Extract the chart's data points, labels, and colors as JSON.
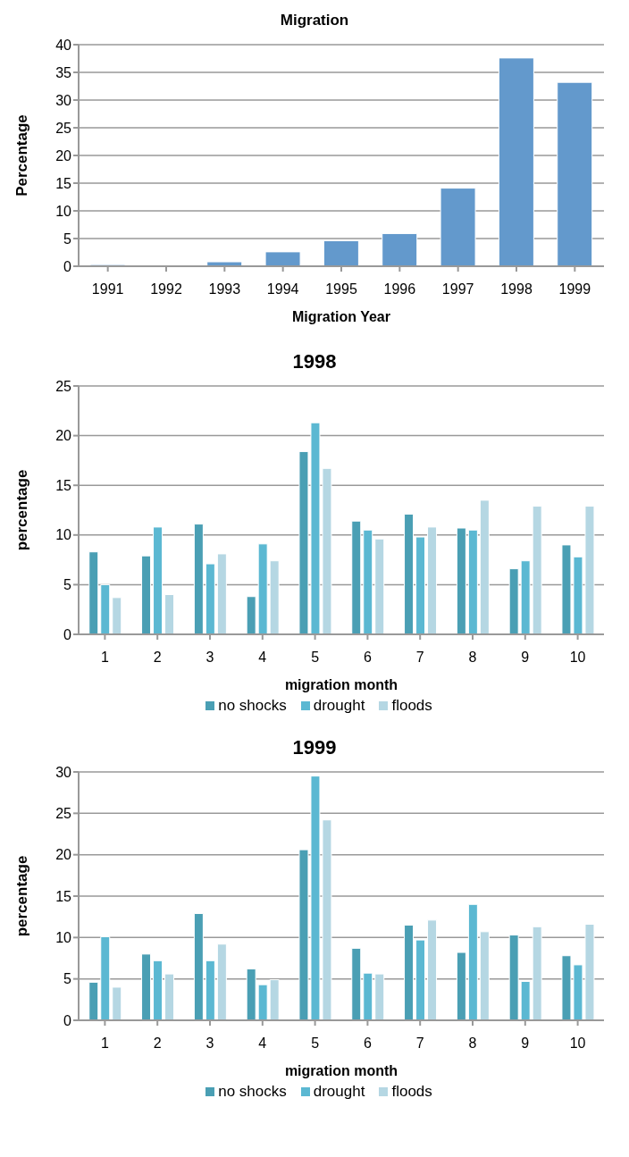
{
  "chart_data": [
    {
      "type": "bar",
      "title": "Migration",
      "xlabel": "Migration Year",
      "ylabel": "Percentage",
      "categories": [
        "1991",
        "1992",
        "1993",
        "1994",
        "1995",
        "1996",
        "1997",
        "1998",
        "1999"
      ],
      "values": [
        0.3,
        0,
        0.8,
        2.6,
        4.6,
        5.9,
        14.1,
        37.6,
        33.2
      ],
      "color": "#6399cc",
      "ylim": [
        0,
        40
      ],
      "yticks": [
        0,
        5,
        10,
        15,
        20,
        25,
        30,
        35,
        40
      ],
      "grid": "y",
      "legend": false
    },
    {
      "type": "bar",
      "title": "1998",
      "xlabel": "migration month",
      "ylabel": "percentage",
      "categories": [
        "1",
        "2",
        "3",
        "4",
        "5",
        "6",
        "7",
        "8",
        "9",
        "10"
      ],
      "series": [
        {
          "name": "no shocks",
          "color": "#4a9fb4",
          "values": [
            8.3,
            7.9,
            11.1,
            3.8,
            18.4,
            11.4,
            12.1,
            10.7,
            6.6,
            9.0
          ]
        },
        {
          "name": "drought",
          "color": "#5bb8d2",
          "values": [
            5.0,
            10.8,
            7.1,
            9.1,
            21.3,
            10.5,
            9.8,
            10.5,
            7.4,
            7.8
          ]
        },
        {
          "name": "floods",
          "color": "#b5d7e3",
          "values": [
            3.7,
            4.0,
            8.1,
            7.4,
            16.7,
            9.6,
            10.8,
            13.5,
            12.9,
            12.9
          ]
        }
      ],
      "ylim": [
        0,
        25
      ],
      "yticks": [
        0,
        5,
        10,
        15,
        20,
        25
      ],
      "grid": "y",
      "legend": "bottom"
    },
    {
      "type": "bar",
      "title": "1999",
      "xlabel": "migration month",
      "ylabel": "percentage",
      "categories": [
        "1",
        "2",
        "3",
        "4",
        "5",
        "6",
        "7",
        "8",
        "9",
        "10"
      ],
      "series": [
        {
          "name": "no shocks",
          "color": "#4a9fb4",
          "values": [
            4.6,
            8.0,
            12.9,
            6.2,
            20.6,
            8.7,
            11.5,
            8.2,
            10.3,
            7.8
          ]
        },
        {
          "name": "drought",
          "color": "#5bb8d2",
          "values": [
            10.1,
            7.2,
            7.2,
            4.3,
            29.5,
            5.7,
            9.7,
            14.0,
            4.7,
            6.7
          ]
        },
        {
          "name": "floods",
          "color": "#b5d7e3",
          "values": [
            4.0,
            5.6,
            9.2,
            4.9,
            24.2,
            5.6,
            12.1,
            10.7,
            11.3,
            11.6
          ]
        }
      ],
      "ylim": [
        0,
        30
      ],
      "yticks": [
        0,
        5,
        10,
        15,
        20,
        25,
        30
      ],
      "grid": "y",
      "legend": "bottom"
    }
  ]
}
